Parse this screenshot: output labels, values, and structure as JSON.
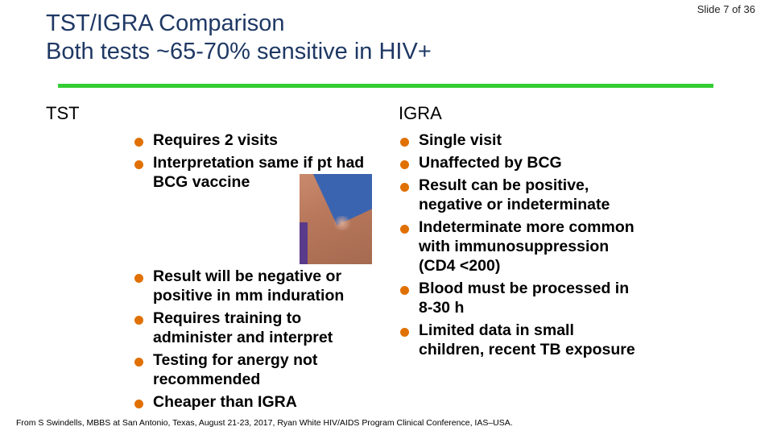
{
  "slide_number": "Slide 7 of 36",
  "title": {
    "line1": "TST/IGRA Comparison",
    "line2": "Both tests ~65-70% sensitive in HIV+"
  },
  "colors": {
    "title": "#1f3864",
    "rule": "#33cc33",
    "bullet": "#e07000"
  },
  "tst": {
    "heading": "TST",
    "top_bullets": [
      "Requires 2 visits",
      "Interpretation same if pt had BCG vaccine"
    ],
    "bottom_bullets": [
      "Result will be negative or positive in mm induration",
      "Requires training  to administer and interpret",
      "Testing for anergy not recommended",
      "Cheaper than IGRA"
    ]
  },
  "igra": {
    "heading": "IGRA",
    "bullets": [
      "Single visit",
      "Unaffected by BCG",
      "Result can be positive, negative or indeterminate",
      "Indeterminate more common with immunosuppression (CD4 <200)",
      "Blood must be processed in 8-30 h",
      "Limited data in small children, recent TB exposure"
    ]
  },
  "footer": "From S Swindells, MBBS at San Antonio, Texas, August 21-23, 2017, Ryan White HIV/AIDS Program Clinical Conference, IAS–USA."
}
